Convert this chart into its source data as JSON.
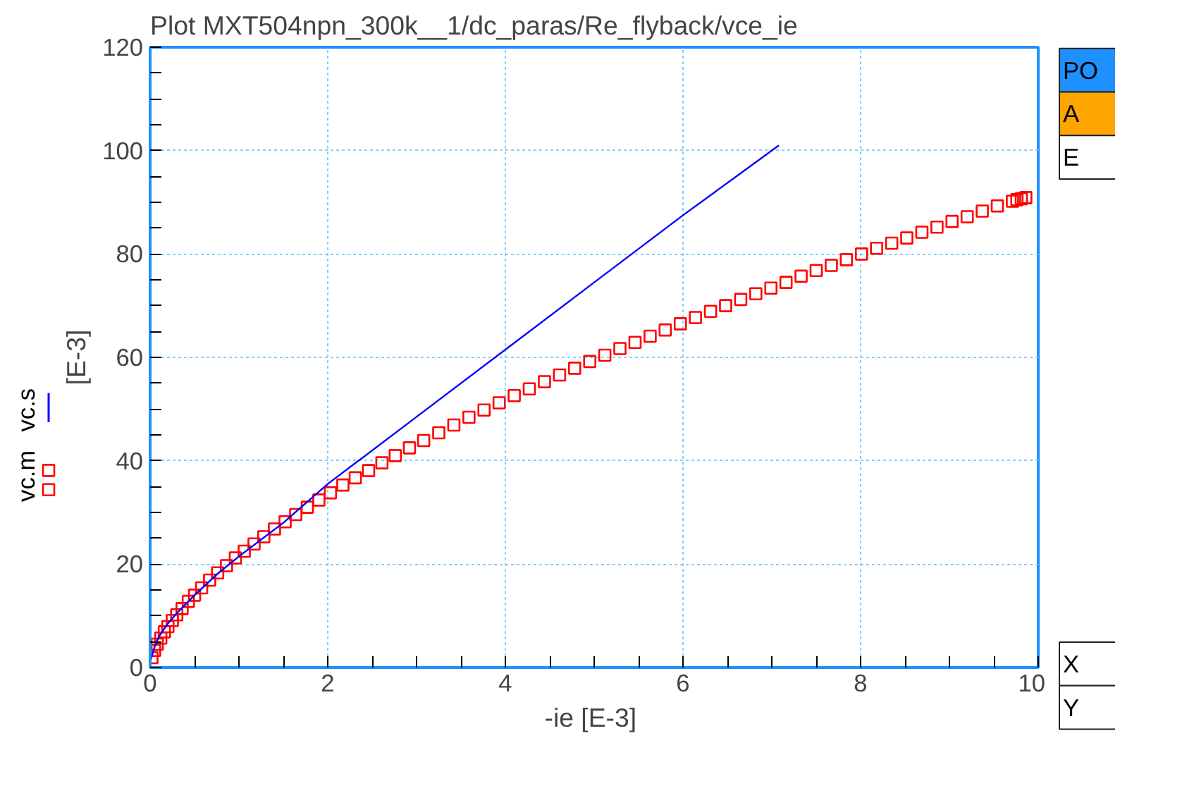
{
  "chart_data": {
    "type": "scatter",
    "title": "Plot MXT504npn_300k__1/dc_paras/Re_flyback/vce_ie",
    "xlabel": "-ie  [E-3]",
    "ylabel": "[E-3]",
    "xlim": [
      0,
      10
    ],
    "ylim": [
      0,
      120
    ],
    "xticks": [
      0,
      2,
      4,
      6,
      8,
      10
    ],
    "yticks": [
      0,
      20,
      40,
      60,
      80,
      100,
      120
    ],
    "grid": true,
    "legend": "left",
    "series": [
      {
        "name": "vc.m",
        "marker": "square",
        "color": "#ff0000",
        "x": [
          0.02,
          0.05,
          0.08,
          0.12,
          0.16,
          0.2,
          0.25,
          0.3,
          0.36,
          0.43,
          0.5,
          0.58,
          0.67,
          0.76,
          0.86,
          0.96,
          1.06,
          1.17,
          1.28,
          1.4,
          1.52,
          1.64,
          1.77,
          1.9,
          2.03,
          2.17,
          2.31,
          2.46,
          2.61,
          2.76,
          2.92,
          3.08,
          3.25,
          3.42,
          3.59,
          3.76,
          3.93,
          4.1,
          4.27,
          4.44,
          4.61,
          4.78,
          4.95,
          5.12,
          5.29,
          5.46,
          5.63,
          5.8,
          5.97,
          6.14,
          6.31,
          6.48,
          6.65,
          6.82,
          6.99,
          7.16,
          7.33,
          7.5,
          7.67,
          7.84,
          8.01,
          8.18,
          8.35,
          8.52,
          8.69,
          8.86,
          9.03,
          9.2,
          9.37,
          9.54,
          9.71,
          9.76,
          9.81,
          9.86
        ],
        "values": [
          1.9,
          3.3,
          4.5,
          5.7,
          6.9,
          7.9,
          9.1,
          10.2,
          11.4,
          12.8,
          14.0,
          15.4,
          16.9,
          18.3,
          19.7,
          21.2,
          22.5,
          23.9,
          25.3,
          26.8,
          28.2,
          29.6,
          31.0,
          32.4,
          33.8,
          35.3,
          36.7,
          38.1,
          39.6,
          41.0,
          42.5,
          43.9,
          45.4,
          46.9,
          48.4,
          49.8,
          51.2,
          52.6,
          53.9,
          55.3,
          56.6,
          57.9,
          59.2,
          60.4,
          61.7,
          62.9,
          64.1,
          65.3,
          66.5,
          67.7,
          68.9,
          70.0,
          71.2,
          72.3,
          73.4,
          74.5,
          75.7,
          76.8,
          77.8,
          78.9,
          80.0,
          81.1,
          82.1,
          83.1,
          84.2,
          85.2,
          86.3,
          87.2,
          88.3,
          89.3,
          90.2,
          90.5,
          90.7,
          90.9
        ]
      },
      {
        "name": "vc.s",
        "type": "line",
        "marker": "none",
        "line_style": "solid",
        "color": "#0000ff",
        "x": [
          0,
          0.05,
          0.1,
          0.2,
          0.3,
          0.5,
          0.75,
          1,
          1.5,
          2,
          3,
          4,
          5,
          6,
          7.08
        ],
        "values": [
          1,
          4,
          6,
          8.5,
          10.5,
          14,
          18,
          21.5,
          28,
          35.5,
          48.5,
          61.5,
          74.5,
          87.5,
          101
        ]
      }
    ],
    "annotations": [
      "PO",
      "A",
      "E",
      "X",
      "Y"
    ]
  }
}
